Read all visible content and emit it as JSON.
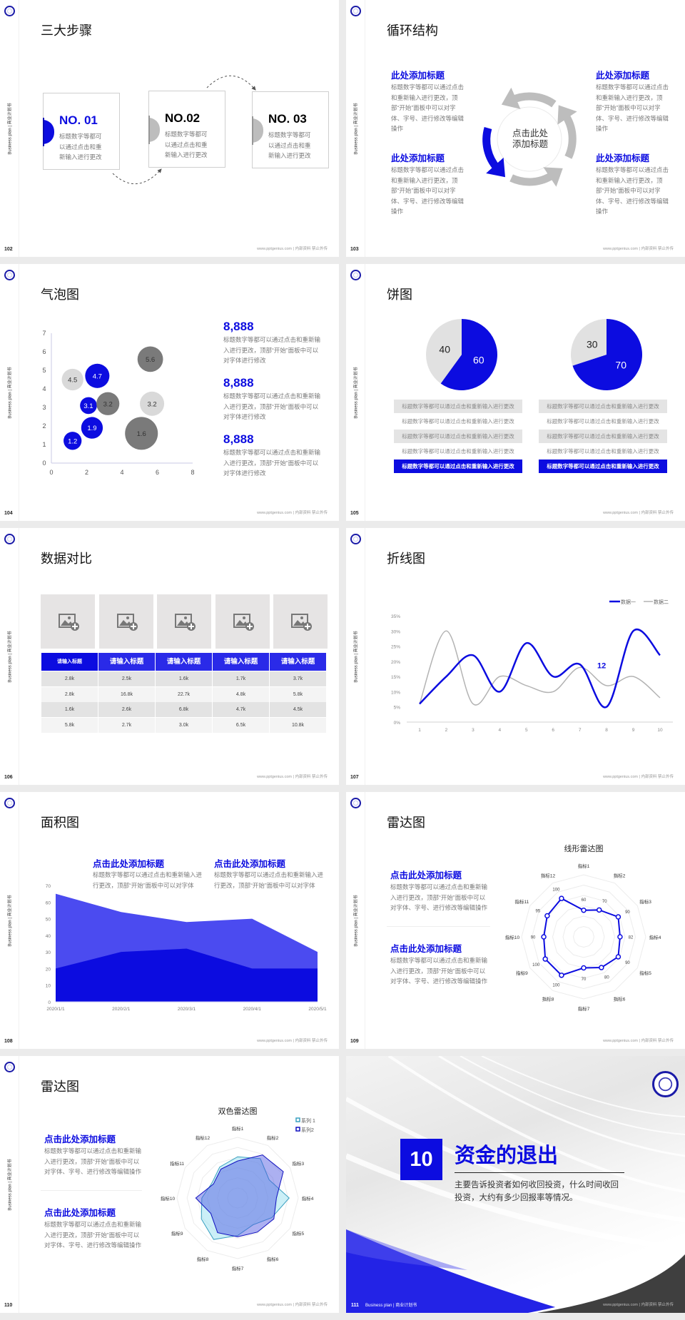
{
  "brand": {
    "blue": "#0c0ce0",
    "grey_dark": "#7a7a7a",
    "grey_light": "#dcdcdc",
    "cyan": "#3aa0c0"
  },
  "common": {
    "side_label": "Business plan | 商业计划书",
    "footer": "www.pptgenius.com | 内部资料 禁止外传"
  },
  "s102": {
    "page": "102",
    "title": "三大步骤",
    "steps": [
      {
        "no": "NO. 01",
        "text": "标题数字等都可以通过点击和重新输入进行更改"
      },
      {
        "no": "NO.02",
        "text": "标题数字等都可以通过点击和重新输入进行更改"
      },
      {
        "no": "NO. 03",
        "text": "标题数字等都可以通过点击和重新输入进行更改"
      }
    ]
  },
  "s103": {
    "page": "103",
    "title": "循环结构",
    "center": "点击此处添加标题",
    "items": [
      {
        "heading": "此处添加标题",
        "text": "标题数字等都可以通过点击和重新输入进行更改，顶部“开始”面板中可以对字体、字号、进行修改等编辑操作"
      },
      {
        "heading": "此处添加标题",
        "text": "标题数字等都可以通过点击和重新输入进行更改，顶部“开始”面板中可以对字体、字号、进行修改等编辑操作"
      },
      {
        "heading": "此处添加标题",
        "text": "标题数字等都可以通过点击和重新输入进行更改，顶部“开始”面板中可以对字体、字号、进行修改等编辑操作"
      },
      {
        "heading": "此处添加标题",
        "text": "标题数字等都可以通过点击和重新输入进行更改，顶部“开始”面板中可以对字体、字号、进行修改等编辑操作"
      }
    ]
  },
  "s104": {
    "page": "104",
    "title": "气泡图",
    "stats": [
      {
        "value": "8,888",
        "text": "标题数字等都可以通过点击和重新输入进行更改，顶部“开始”面板中可以对字体进行修改"
      },
      {
        "value": "8,888",
        "text": "标题数字等都可以通过点击和重新输入进行更改，顶部“开始”面板中可以对字体进行修改"
      },
      {
        "value": "8,888",
        "text": "标题数字等都可以通过点击和重新输入进行更改，顶部“开始”面板中可以对字体进行修改"
      }
    ]
  },
  "s105": {
    "page": "105",
    "title": "饼图",
    "rows": [
      "标题数字等都可以通过点击和重新输入进行更改",
      "标题数字等都可以通过点击和重新输入进行更改",
      "标题数字等都可以通过点击和重新输入进行更改",
      "标题数字等都可以通过点击和重新输入进行更改",
      "标题数字等都可以通过点击和重新输入进行更改"
    ]
  },
  "s106": {
    "page": "106",
    "title": "数据对比",
    "headers": [
      "请输入标题",
      "请输入标题",
      "请输入标题",
      "请输入标题",
      "请输入标题"
    ],
    "rows": [
      [
        "2.8k",
        "2.5k",
        "1.6k",
        "1.7k",
        "3.7k"
      ],
      [
        "2.8k",
        "16.8k",
        "22.7k",
        "4.8k",
        "5.8k"
      ],
      [
        "1.6k",
        "2.6k",
        "6.8k",
        "4.7k",
        "4.5k"
      ],
      [
        "5.8k",
        "2.7k",
        "3.0k",
        "6.5k",
        "10.8k"
      ]
    ]
  },
  "s107": {
    "page": "107",
    "title": "折线图"
  },
  "s108": {
    "page": "108",
    "title": "面积图",
    "blocks": [
      {
        "heading": "点击此处添加标题",
        "text": "标题数字等都可以通过点击和重新输入进行更改，顶部“开始”面板中可以对字体"
      },
      {
        "heading": "点击此处添加标题",
        "text": "标题数字等都可以通过点击和重新输入进行更改，顶部“开始”面板中可以对字体"
      }
    ]
  },
  "s109": {
    "page": "109",
    "title": "雷达图",
    "blocks": [
      {
        "heading": "点击此处添加标题",
        "text": "标题数字等都可以通过点击和重新输入进行更改，顶部“开始”面板中可以对字体、字号、进行修改等编辑操作"
      },
      {
        "heading": "点击此处添加标题",
        "text": "标题数字等都可以通过点击和重新输入进行更改，顶部“开始”面板中可以对字体、字号、进行修改等编辑操作"
      }
    ]
  },
  "s110": {
    "page": "110",
    "title": "雷达图",
    "blocks": [
      {
        "heading": "点击此处添加标题",
        "text": "标题数字等都可以通过点击和重新输入进行更改，顶部“开始”面板中可以对字体、字号、进行修改等编辑操作"
      },
      {
        "heading": "点击此处添加标题",
        "text": "标题数字等都可以通过点击和重新输入进行更改，顶部“开始”面板中可以对字体、字号、进行修改等编辑操作"
      }
    ]
  },
  "s111": {
    "page": "111",
    "number": "10",
    "title": "资金的退出",
    "desc": "主要告诉投资者如何收回投资，什么时间收回投资，大约有多少回报率等情况。",
    "footer_left": "Business plan | 商业计划书"
  },
  "chart_data": [
    {
      "type": "scatter",
      "variant": "bubble",
      "xlim": [
        0,
        8
      ],
      "ylim": [
        0,
        7
      ],
      "xticks": [
        "0",
        "2",
        "4",
        "6",
        "8"
      ],
      "yticks": [
        "0",
        "1",
        "2",
        "3",
        "4",
        "5",
        "6",
        "7"
      ],
      "points": [
        {
          "x": 1.2,
          "y": 4.5,
          "size": 2.3,
          "label": "4.5",
          "color": "#d9d9d9"
        },
        {
          "x": 2.6,
          "y": 4.7,
          "size": 2.9,
          "label": "4.7",
          "color": "#0c0ce0"
        },
        {
          "x": 5.6,
          "y": 5.6,
          "size": 3.2,
          "label": "5.6",
          "color": "#7a7a7a"
        },
        {
          "x": 2.1,
          "y": 3.1,
          "size": 1.4,
          "label": "3.1",
          "color": "#0c0ce0"
        },
        {
          "x": 3.2,
          "y": 3.2,
          "size": 2.6,
          "label": "3.2",
          "color": "#7a7a7a"
        },
        {
          "x": 5.7,
          "y": 3.2,
          "size": 2.9,
          "label": "3.2",
          "color": "#d9d9d9"
        },
        {
          "x": 2.3,
          "y": 1.9,
          "size": 2.3,
          "label": "1.9",
          "color": "#0c0ce0"
        },
        {
          "x": 1.2,
          "y": 1.2,
          "size": 1.6,
          "label": "1.2",
          "color": "#0c0ce0"
        },
        {
          "x": 5.1,
          "y": 1.6,
          "size": 5.3,
          "label": "1.6",
          "color": "#7a7a7a"
        }
      ]
    },
    {
      "type": "pie",
      "values": [
        60,
        40
      ],
      "labels": [
        "60",
        "40"
      ],
      "colors": [
        "#0c0ce0",
        "#e1e1e1"
      ]
    },
    {
      "type": "pie",
      "values": [
        70,
        30
      ],
      "labels": [
        "70",
        "30"
      ],
      "colors": [
        "#0c0ce0",
        "#e1e1e1"
      ]
    },
    {
      "type": "line",
      "x": [
        "1",
        "2",
        "3",
        "4",
        "5",
        "6",
        "7",
        "8",
        "9",
        "10"
      ],
      "ylim": [
        0,
        35
      ],
      "yticks": [
        "0%",
        "5%",
        "10%",
        "15%",
        "20%",
        "25%",
        "30%",
        "35%"
      ],
      "legend": "top-right",
      "series": [
        {
          "name": "数据一",
          "color": "#0c0ce0",
          "values": [
            6,
            15,
            22,
            10,
            26,
            15,
            19,
            5,
            30,
            22
          ]
        },
        {
          "name": "数据二",
          "color": "#b3b3b3",
          "values": [
            6,
            30,
            6,
            15,
            12,
            10,
            18,
            12,
            15,
            8
          ]
        }
      ],
      "annotation": {
        "text": "12",
        "x": 8,
        "y": 18
      }
    },
    {
      "type": "area",
      "categories": [
        "2020/1/1",
        "2020/2/1",
        "2020/3/1",
        "2020/4/1",
        "2020/5/1"
      ],
      "ylim": [
        0,
        70
      ],
      "yticks": [
        "0",
        "10",
        "20",
        "30",
        "40",
        "50",
        "60",
        "70"
      ],
      "series": [
        {
          "color": "#4b4bf0",
          "values": [
            65,
            54,
            48,
            50,
            30
          ]
        },
        {
          "color": "#0c0ce0",
          "values": [
            20,
            30,
            32,
            20,
            20
          ]
        }
      ]
    },
    {
      "type": "radar",
      "title": "线形雷达图",
      "rlim": [
        0,
        140
      ],
      "axes": [
        "指标1",
        "指标2",
        "指标3",
        "指标4",
        "指标5",
        "指标6",
        "指标7",
        "指标8",
        "指标9",
        "指标10",
        "指标11",
        "指标12"
      ],
      "series": [
        {
          "color": "#0c0ce0",
          "values": [
            60,
            70,
            90,
            82,
            90,
            80,
            70,
            100,
            100,
            90,
            95,
            100
          ],
          "labels": [
            "60",
            "70",
            "90",
            "82",
            "90",
            "80",
            "70",
            "100",
            "100",
            "90",
            "95",
            "100"
          ]
        }
      ]
    },
    {
      "type": "radar",
      "title": "双色雷达图",
      "rlim": [
        0,
        100
      ],
      "legend": "top-right",
      "axes": [
        "指标1",
        "指标2",
        "指标3",
        "指标4",
        "指标5",
        "指标6",
        "指标7",
        "指标8",
        "指标9",
        "指标10",
        "指标11",
        "指标12"
      ],
      "series": [
        {
          "name": "系列 1",
          "color": "#3aa0c0",
          "fill": "rgba(160,225,240,0.55)",
          "values": [
            68,
            75,
            60,
            85,
            65,
            51,
            62,
            79,
            69,
            59,
            49,
            59
          ]
        },
        {
          "name": "系列2",
          "color": "#1010c0",
          "fill": "rgba(70,80,225,0.45)",
          "values": [
            61,
            82,
            87,
            64,
            69,
            65,
            64,
            66,
            51,
            69,
            46,
            55
          ]
        }
      ]
    }
  ]
}
